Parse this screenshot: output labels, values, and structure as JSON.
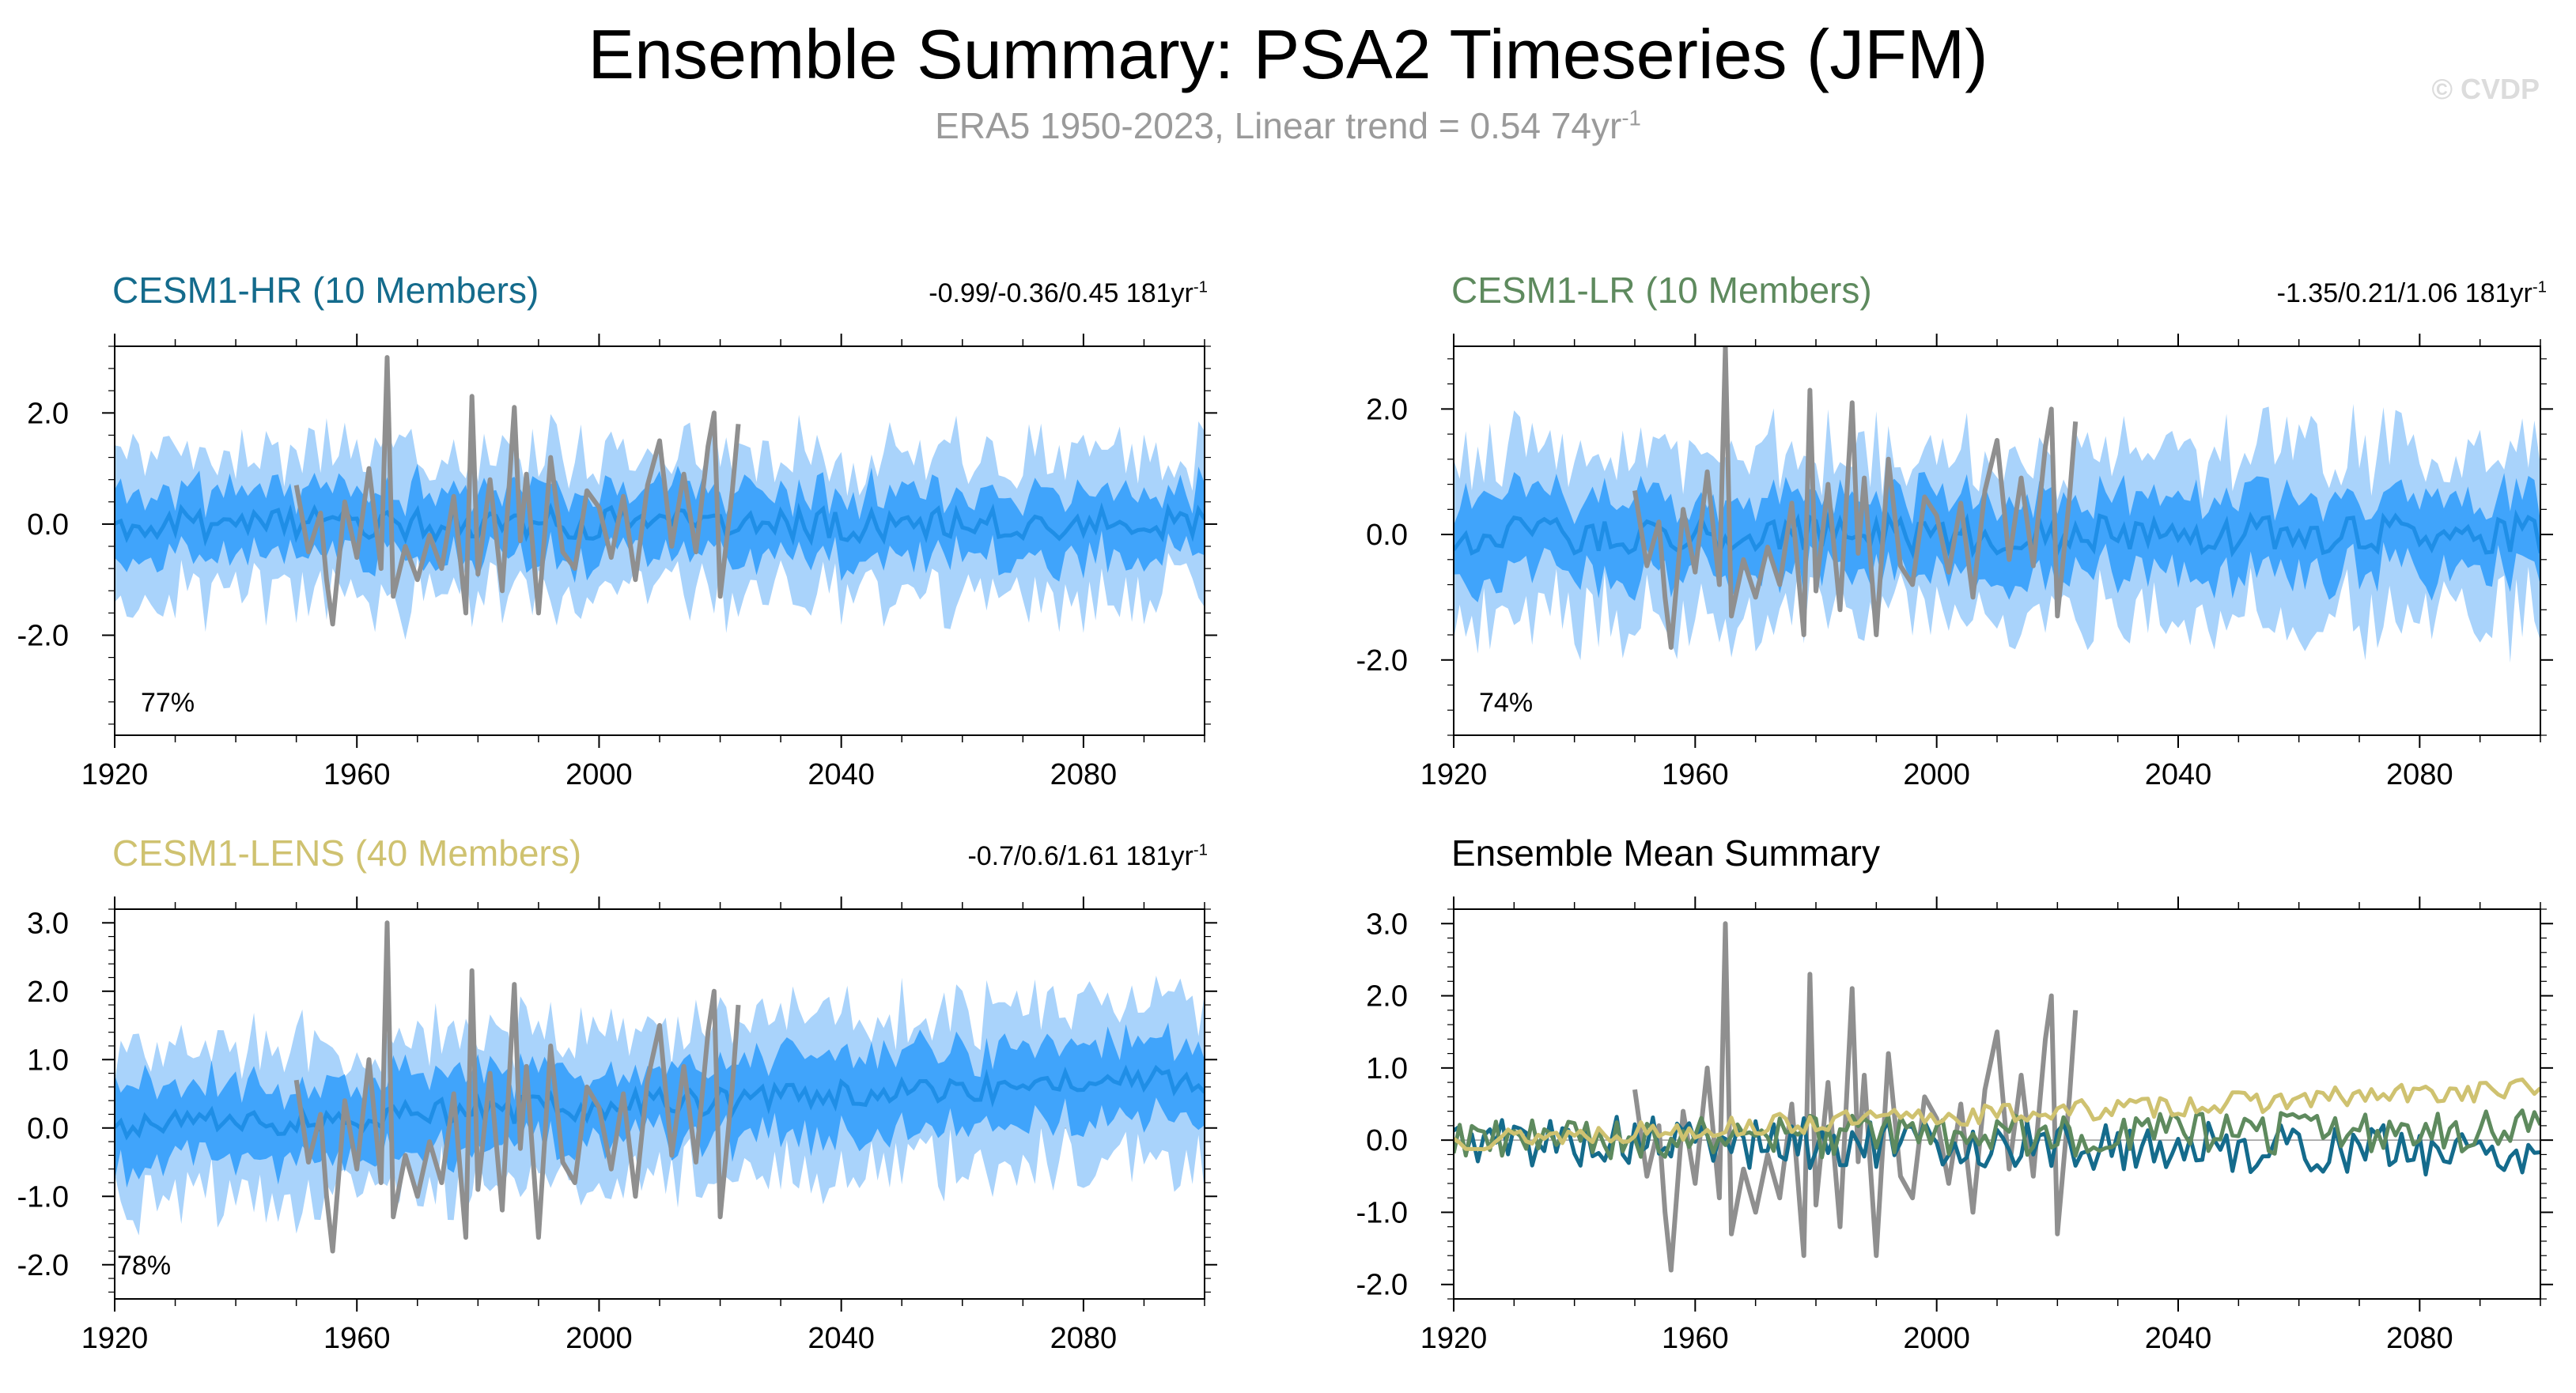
{
  "header": {
    "title": "Ensemble Summary: PSA2 Timeseries (JFM)",
    "subtitle_main": "ERA5 1950-2023, Linear trend = 0.54 74yr",
    "subtitle_sup": "-1",
    "watermark": "© CVDP"
  },
  "colors": {
    "band_outer": "#a9d3fb",
    "band_inner": "#40a4fb",
    "ens_mean_line": "#1f8ee6",
    "obs_line": "#8f8f8f",
    "hr": "#146b8c",
    "lr": "#5e8a5e",
    "lens": "#cfc270",
    "summary_title": "#000000"
  },
  "chart_data": [
    {
      "type": "area",
      "id": "hr",
      "title": "CESM1-HR (10 Members)",
      "stats": "-0.99/-0.36/0.45 181yr",
      "stats_sup": "-1",
      "percent_label": "77%",
      "xlim": [
        1920,
        2100
      ],
      "ylim": [
        -3.8,
        3.2
      ],
      "xticks": [
        1920,
        1960,
        2000,
        2040,
        2080
      ],
      "xtick_labels": [
        "1920",
        "1960",
        "2000",
        "2040",
        "2080"
      ],
      "yticks": [
        -2.0,
        0.0,
        2.0
      ],
      "ytick_labels": [
        "-2.0",
        "0.0",
        "2.0"
      ],
      "x_range": [
        1920,
        2100
      ],
      "ensemble_mean_amplitude": 0.3,
      "inner_band_halfwidth": 0.6,
      "outer_band_halfwidth": 1.3,
      "trend_per_year": 0.0,
      "seed": 11,
      "obs_series": {
        "name": "ERA5",
        "x": [
          1950,
          1952,
          1954,
          1955,
          1956,
          1958,
          1960,
          1962,
          1964,
          1965,
          1966,
          1968,
          1970,
          1972,
          1974,
          1976,
          1978,
          1979,
          1980,
          1982,
          1984,
          1986,
          1987,
          1988,
          1990,
          1992,
          1994,
          1996,
          1998,
          2000,
          2002,
          2004,
          2006,
          2008,
          2010,
          2012,
          2014,
          2016,
          2018,
          2019,
          2020,
          2022,
          2023
        ],
        "y": [
          0.7,
          -0.5,
          0.2,
          -1.0,
          -1.8,
          0.4,
          -0.6,
          1.0,
          -0.8,
          3.0,
          -1.3,
          -0.4,
          -1.0,
          -0.2,
          -0.8,
          0.5,
          -1.6,
          2.3,
          -0.9,
          0.8,
          -1.2,
          2.1,
          -0.3,
          0.9,
          -1.6,
          1.2,
          -0.5,
          -0.8,
          0.6,
          0.3,
          -0.6,
          0.5,
          -1.0,
          0.7,
          1.5,
          -0.4,
          0.9,
          -0.5,
          1.4,
          2.0,
          -1.3,
          0.6,
          1.8
        ]
      }
    },
    {
      "type": "area",
      "id": "lr",
      "title": "CESM1-LR (10 Members)",
      "stats": "-1.35/0.21/1.06 181yr",
      "stats_sup": "-1",
      "percent_label": "74%",
      "xlim": [
        1920,
        2100
      ],
      "ylim": [
        -3.2,
        3.0
      ],
      "xticks": [
        1920,
        1960,
        2000,
        2040,
        2080
      ],
      "xtick_labels": [
        "1920",
        "1960",
        "2000",
        "2040",
        "2080"
      ],
      "yticks": [
        -2.0,
        0.0,
        2.0
      ],
      "ytick_labels": [
        "-2.0",
        "0.0",
        "2.0"
      ],
      "x_range": [
        1920,
        2100
      ],
      "ensemble_mean_amplitude": 0.3,
      "inner_band_halfwidth": 0.6,
      "outer_band_halfwidth": 1.3,
      "trend_per_year": 0.0,
      "seed": 23,
      "obs_series": {
        "name": "ERA5",
        "x": [
          1950,
          1952,
          1954,
          1955,
          1956,
          1958,
          1960,
          1962,
          1964,
          1965,
          1966,
          1968,
          1970,
          1972,
          1974,
          1976,
          1978,
          1979,
          1980,
          1982,
          1984,
          1986,
          1987,
          1988,
          1990,
          1992,
          1994,
          1996,
          1998,
          2000,
          2002,
          2004,
          2006,
          2008,
          2010,
          2012,
          2014,
          2016,
          2018,
          2019,
          2020,
          2022,
          2023
        ],
        "y": [
          0.7,
          -0.5,
          0.2,
          -1.0,
          -1.8,
          0.4,
          -0.6,
          1.0,
          -0.8,
          3.0,
          -1.3,
          -0.4,
          -1.0,
          -0.2,
          -0.8,
          0.5,
          -1.6,
          2.3,
          -0.9,
          0.8,
          -1.2,
          2.1,
          -0.3,
          0.9,
          -1.6,
          1.2,
          -0.5,
          -0.8,
          0.6,
          0.3,
          -0.6,
          0.5,
          -1.0,
          0.7,
          1.5,
          -0.4,
          0.9,
          -0.5,
          1.4,
          2.0,
          -1.3,
          0.6,
          1.8
        ]
      }
    },
    {
      "type": "area",
      "id": "lens",
      "title": "CESM1-LENS (40 Members)",
      "stats": "-0.7/0.6/1.61 181yr",
      "stats_sup": "-1",
      "percent_label": "78%",
      "xlim": [
        1920,
        2100
      ],
      "ylim": [
        -2.5,
        3.2
      ],
      "xticks": [
        1920,
        1960,
        2000,
        2040,
        2080
      ],
      "xtick_labels": [
        "1920",
        "1960",
        "2000",
        "2040",
        "2080"
      ],
      "yticks": [
        -2.0,
        -1.0,
        0.0,
        1.0,
        2.0,
        3.0
      ],
      "ytick_labels": [
        "-2.0",
        "-1.0",
        "0.0",
        "1.0",
        "2.0",
        "3.0"
      ],
      "x_range": [
        1920,
        2100
      ],
      "ensemble_mean_amplitude": 0.2,
      "inner_band_halfwidth": 0.55,
      "outer_band_halfwidth": 1.1,
      "trend_per_year": 0.004,
      "seed": 37,
      "obs_series": {
        "name": "ERA5",
        "x": [
          1950,
          1952,
          1954,
          1955,
          1956,
          1958,
          1960,
          1962,
          1964,
          1965,
          1966,
          1968,
          1970,
          1972,
          1974,
          1976,
          1978,
          1979,
          1980,
          1982,
          1984,
          1986,
          1987,
          1988,
          1990,
          1992,
          1994,
          1996,
          1998,
          2000,
          2002,
          2004,
          2006,
          2008,
          2010,
          2012,
          2014,
          2016,
          2018,
          2019,
          2020,
          2022,
          2023
        ],
        "y": [
          0.7,
          -0.5,
          0.2,
          -1.0,
          -1.8,
          0.4,
          -0.6,
          1.0,
          -0.8,
          3.0,
          -1.3,
          -0.4,
          -1.0,
          -0.2,
          -0.8,
          0.5,
          -1.6,
          2.3,
          -0.9,
          0.8,
          -1.2,
          2.1,
          -0.3,
          0.9,
          -1.6,
          1.2,
          -0.5,
          -0.8,
          0.6,
          0.3,
          -0.6,
          0.5,
          -1.0,
          0.7,
          1.5,
          -0.4,
          0.9,
          -0.5,
          1.4,
          2.0,
          -1.3,
          0.6,
          1.8
        ]
      }
    },
    {
      "type": "line",
      "id": "summary",
      "title": "Ensemble Mean Summary",
      "xlim": [
        1920,
        2100
      ],
      "ylim": [
        -2.2,
        3.2
      ],
      "xticks": [
        1920,
        1960,
        2000,
        2040,
        2080
      ],
      "xtick_labels": [
        "1920",
        "1960",
        "2000",
        "2040",
        "2080"
      ],
      "yticks": [
        -2.0,
        -1.0,
        0.0,
        1.0,
        2.0,
        3.0
      ],
      "ytick_labels": [
        "-2.0",
        "-1.0",
        "0.0",
        "1.0",
        "2.0",
        "3.0"
      ],
      "series": [
        {
          "name": "CESM1-HR",
          "color_key": "hr",
          "amplitude": 0.35,
          "trend_per_year": -0.0008,
          "seed": 5
        },
        {
          "name": "CESM1-LR",
          "color_key": "lr",
          "amplitude": 0.3,
          "trend_per_year": 0.0008,
          "seed": 9
        },
        {
          "name": "CESM1-LENS",
          "color_key": "lens",
          "amplitude": 0.15,
          "trend_per_year": 0.004,
          "seed": 13
        }
      ],
      "obs_series": {
        "name": "ERA5",
        "x": [
          1950,
          1952,
          1954,
          1955,
          1956,
          1958,
          1960,
          1962,
          1964,
          1965,
          1966,
          1968,
          1970,
          1972,
          1974,
          1976,
          1978,
          1979,
          1980,
          1982,
          1984,
          1986,
          1987,
          1988,
          1990,
          1992,
          1994,
          1996,
          1998,
          2000,
          2002,
          2004,
          2006,
          2008,
          2010,
          2012,
          2014,
          2016,
          2018,
          2019,
          2020,
          2022,
          2023
        ],
        "y": [
          0.7,
          -0.5,
          0.2,
          -1.0,
          -1.8,
          0.4,
          -0.6,
          1.0,
          -0.8,
          3.0,
          -1.3,
          -0.4,
          -1.0,
          -0.2,
          -0.8,
          0.5,
          -1.6,
          2.3,
          -0.9,
          0.8,
          -1.2,
          2.1,
          -0.3,
          0.9,
          -1.6,
          1.2,
          -0.5,
          -0.8,
          0.6,
          0.3,
          -0.6,
          0.5,
          -1.0,
          0.7,
          1.5,
          -0.4,
          0.9,
          -0.5,
          1.4,
          2.0,
          -1.3,
          0.6,
          1.8
        ]
      }
    }
  ]
}
